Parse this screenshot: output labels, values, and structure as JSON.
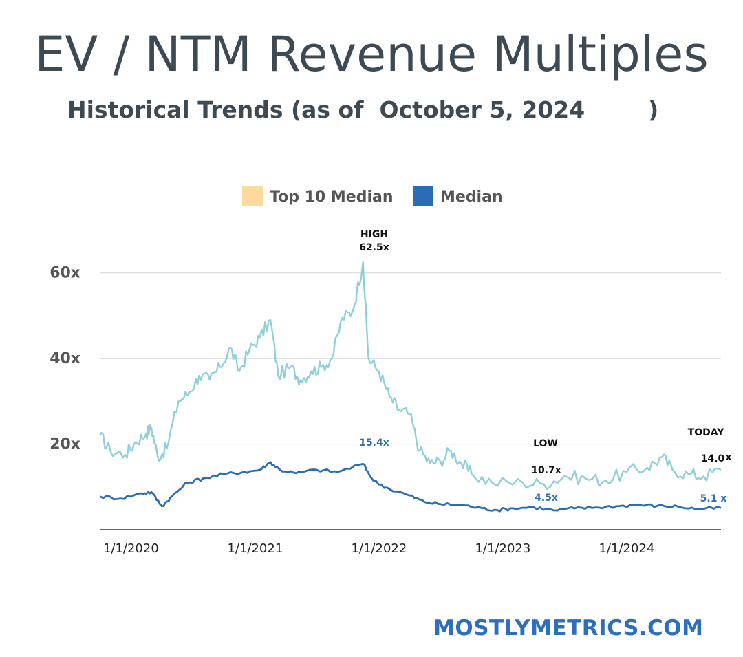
{
  "header": {
    "title": "EV / NTM Revenue Multiples",
    "subtitle": "Historical Trends (as of  October 5, 2024        )"
  },
  "footer": {
    "brand": "MOSTLYMETRICS.COM"
  },
  "colors": {
    "top10_line": "#8ecfdc",
    "top10_legend": "#fcd99c",
    "median": "#2a6db6",
    "grid": "#d9d9d9",
    "axis": "#333333",
    "annotation": "#111111",
    "median_label": "#2f70b7"
  },
  "chart_data": {
    "type": "line",
    "xlabel": "",
    "ylabel": "",
    "x_ticks": [
      "1/1/2020",
      "1/1/2021",
      "1/1/2022",
      "1/1/2023",
      "1/1/2024"
    ],
    "y_ticks": [
      "20x",
      "40x",
      "60x"
    ],
    "xlim": [
      "2019-10-01",
      "2024-10-05"
    ],
    "ylim": [
      0,
      63
    ],
    "grid": true,
    "legend_position": "top-center",
    "legend": [
      "Top 10 Median",
      "Median"
    ],
    "series": [
      {
        "name": "Top 10 Median",
        "color": "#8ecfdc",
        "points": [
          [
            "2019-10-01",
            22.0
          ],
          [
            "2019-11-01",
            18.5
          ],
          [
            "2019-12-15",
            17.5
          ],
          [
            "2020-01-15",
            20.5
          ],
          [
            "2020-02-15",
            22.5
          ],
          [
            "2020-03-01",
            24.0
          ],
          [
            "2020-03-20",
            17.0
          ],
          [
            "2020-04-15",
            19.0
          ],
          [
            "2020-05-20",
            30.0
          ],
          [
            "2020-06-20",
            32.0
          ],
          [
            "2020-07-20",
            36.0
          ],
          [
            "2020-08-20",
            35.0
          ],
          [
            "2020-09-20",
            38.0
          ],
          [
            "2020-10-20",
            42.5
          ],
          [
            "2020-11-15",
            37.0
          ],
          [
            "2020-12-15",
            42.0
          ],
          [
            "2021-01-15",
            45.0
          ],
          [
            "2021-02-15",
            49.0
          ],
          [
            "2021-03-10",
            36.0
          ],
          [
            "2021-04-15",
            38.0
          ],
          [
            "2021-05-15",
            35.0
          ],
          [
            "2021-06-15",
            37.0
          ],
          [
            "2021-07-15",
            38.0
          ],
          [
            "2021-08-15",
            40.0
          ],
          [
            "2021-09-15",
            49.5
          ],
          [
            "2021-10-15",
            51.0
          ],
          [
            "2021-11-15",
            62.5
          ],
          [
            "2021-12-01",
            40.0
          ],
          [
            "2022-01-01",
            37.0
          ],
          [
            "2022-02-01",
            31.0
          ],
          [
            "2022-03-01",
            28.0
          ],
          [
            "2022-04-01",
            27.0
          ],
          [
            "2022-05-01",
            18.5
          ],
          [
            "2022-06-01",
            15.5
          ],
          [
            "2022-07-01",
            16.0
          ],
          [
            "2022-08-01",
            18.5
          ],
          [
            "2022-09-01",
            15.5
          ],
          [
            "2022-10-01",
            13.0
          ],
          [
            "2022-12-01",
            11.0
          ],
          [
            "2023-03-01",
            11.0
          ],
          [
            "2023-05-01",
            10.7
          ],
          [
            "2023-07-01",
            12.5
          ],
          [
            "2023-09-01",
            12.0
          ],
          [
            "2023-11-01",
            11.5
          ],
          [
            "2024-01-01",
            13.5
          ],
          [
            "2024-03-01",
            14.5
          ],
          [
            "2024-04-15",
            17.0
          ],
          [
            "2024-05-15",
            14.0
          ],
          [
            "2024-07-01",
            13.0
          ],
          [
            "2024-08-15",
            12.5
          ],
          [
            "2024-10-05",
            14.0
          ]
        ]
      },
      {
        "name": "Median",
        "color": "#2a6db6",
        "points": [
          [
            "2019-10-01",
            7.8
          ],
          [
            "2019-12-01",
            7.3
          ],
          [
            "2020-02-01",
            8.5
          ],
          [
            "2020-03-01",
            8.8
          ],
          [
            "2020-04-01",
            5.5
          ],
          [
            "2020-05-01",
            7.8
          ],
          [
            "2020-06-15",
            11.0
          ],
          [
            "2020-08-01",
            12.0
          ],
          [
            "2020-10-01",
            13.0
          ],
          [
            "2020-12-01",
            13.5
          ],
          [
            "2021-01-15",
            14.0
          ],
          [
            "2021-02-15",
            15.8
          ],
          [
            "2021-03-15",
            14.0
          ],
          [
            "2021-05-01",
            13.2
          ],
          [
            "2021-07-01",
            14.0
          ],
          [
            "2021-09-01",
            13.5
          ],
          [
            "2021-11-15",
            15.4
          ],
          [
            "2021-12-15",
            11.5
          ],
          [
            "2022-02-01",
            9.5
          ],
          [
            "2022-04-01",
            8.0
          ],
          [
            "2022-05-15",
            6.5
          ],
          [
            "2022-07-01",
            6.0
          ],
          [
            "2022-09-01",
            5.8
          ],
          [
            "2022-11-01",
            5.0
          ],
          [
            "2022-12-15",
            4.6
          ],
          [
            "2023-02-01",
            5.0
          ],
          [
            "2023-04-01",
            5.3
          ],
          [
            "2023-06-01",
            4.5
          ],
          [
            "2023-08-01",
            5.0
          ],
          [
            "2023-10-01",
            5.2
          ],
          [
            "2023-12-01",
            5.5
          ],
          [
            "2024-02-01",
            5.8
          ],
          [
            "2024-04-01",
            5.6
          ],
          [
            "2024-06-01",
            5.4
          ],
          [
            "2024-08-01",
            4.8
          ],
          [
            "2024-10-05",
            5.1
          ]
        ]
      }
    ],
    "annotations": {
      "high_label": "HIGH",
      "high_value": "62.5x",
      "median_peak": "15.4x",
      "low_label": "LOW",
      "low_value": "10.7x",
      "median_low": "4.5x",
      "today_label": "TODAY",
      "today_value": "14.0",
      "today_suffix": "x",
      "today_median": "5.1 x"
    }
  }
}
